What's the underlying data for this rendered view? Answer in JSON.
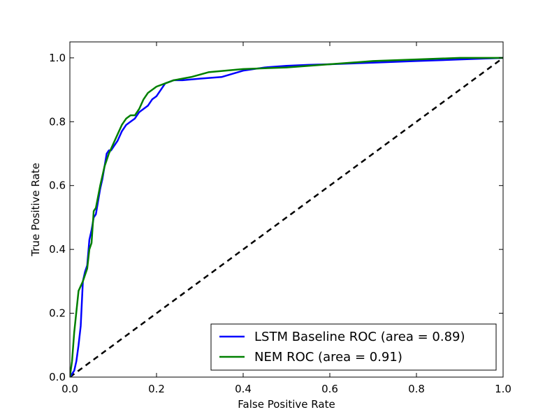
{
  "chart_data": {
    "type": "line",
    "title": "",
    "xlabel": "False Positive Rate",
    "ylabel": "True Positive Rate",
    "xlim": [
      0.0,
      1.0
    ],
    "ylim": [
      0.0,
      1.05
    ],
    "xticks": [
      "0.0",
      "0.2",
      "0.4",
      "0.6",
      "0.8",
      "1.0"
    ],
    "yticks": [
      "0.0",
      "0.2",
      "0.4",
      "0.6",
      "0.8",
      "1.0"
    ],
    "grid": false,
    "legend_position": "lower-right",
    "series": [
      {
        "name": "LSTM Baseline ROC (area = 0.89)",
        "color": "#0000ff",
        "style": "solid",
        "x": [
          0.0,
          0.01,
          0.015,
          0.02,
          0.025,
          0.03,
          0.035,
          0.04,
          0.045,
          0.05,
          0.055,
          0.06,
          0.065,
          0.07,
          0.075,
          0.08,
          0.085,
          0.09,
          0.095,
          0.1,
          0.11,
          0.12,
          0.13,
          0.14,
          0.15,
          0.16,
          0.17,
          0.18,
          0.19,
          0.2,
          0.21,
          0.22,
          0.24,
          0.26,
          0.3,
          0.35,
          0.4,
          0.45,
          0.5,
          0.55,
          0.6,
          0.7,
          0.8,
          0.9,
          1.0
        ],
        "y": [
          0.0,
          0.02,
          0.05,
          0.1,
          0.16,
          0.3,
          0.33,
          0.35,
          0.43,
          0.46,
          0.5,
          0.51,
          0.55,
          0.59,
          0.62,
          0.66,
          0.7,
          0.71,
          0.71,
          0.72,
          0.74,
          0.77,
          0.79,
          0.8,
          0.81,
          0.83,
          0.84,
          0.85,
          0.87,
          0.88,
          0.9,
          0.92,
          0.93,
          0.93,
          0.935,
          0.94,
          0.96,
          0.97,
          0.975,
          0.978,
          0.98,
          0.985,
          0.99,
          0.995,
          1.0
        ]
      },
      {
        "name": "NEM ROC (area = 0.91)",
        "color": "#008000",
        "style": "solid",
        "x": [
          0.0,
          0.005,
          0.01,
          0.02,
          0.03,
          0.04,
          0.045,
          0.05,
          0.055,
          0.06,
          0.07,
          0.08,
          0.09,
          0.1,
          0.11,
          0.12,
          0.13,
          0.14,
          0.15,
          0.16,
          0.17,
          0.18,
          0.2,
          0.22,
          0.24,
          0.28,
          0.32,
          0.36,
          0.4,
          0.5,
          0.6,
          0.7,
          0.8,
          0.9,
          1.0
        ],
        "y": [
          0.0,
          0.05,
          0.14,
          0.27,
          0.3,
          0.34,
          0.4,
          0.42,
          0.52,
          0.53,
          0.6,
          0.66,
          0.7,
          0.73,
          0.76,
          0.79,
          0.81,
          0.82,
          0.82,
          0.84,
          0.87,
          0.89,
          0.91,
          0.92,
          0.93,
          0.94,
          0.955,
          0.96,
          0.965,
          0.97,
          0.98,
          0.99,
          0.995,
          1.0,
          1.0
        ]
      },
      {
        "name": "",
        "color": "#000000",
        "style": "dashed",
        "x": [
          0.0,
          1.0
        ],
        "y": [
          0.0,
          1.0
        ]
      }
    ]
  }
}
